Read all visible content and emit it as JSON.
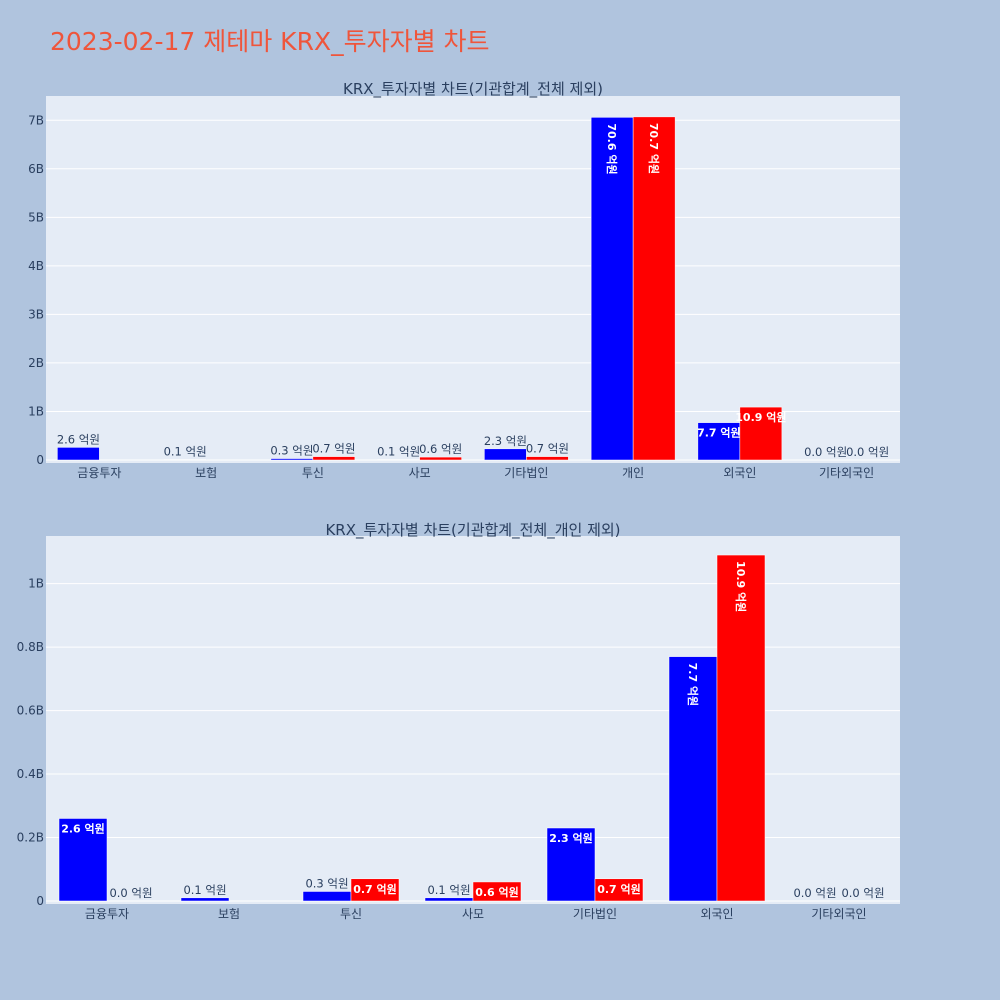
{
  "page_title": "2023-02-17 제테마 KRX_투자자별 차트",
  "colors": {
    "series_a": "#0000ff",
    "series_b": "#ff0000",
    "background": "#b0c4de",
    "plot_bg": "#e5ecf6",
    "title": "#ef553b"
  },
  "chart_data": [
    {
      "type": "bar",
      "title": "KRX_투자자별 차트(기관합계_전체 제외)",
      "categories": [
        "금융투자",
        "보험",
        "투신",
        "사모",
        "기타법인",
        "개인",
        "외국인",
        "기타외국인"
      ],
      "series": [
        {
          "values": [
            260000000,
            10000000,
            30000000,
            10000000,
            230000000,
            7060000000,
            770000000,
            0
          ],
          "labels": [
            "2.6 억원",
            "0.1 억원",
            "0.3 억원",
            "0.1 억원",
            "2.3 억원",
            "70.6 억원",
            "7.7 억원",
            "0.0 억원"
          ]
        },
        {
          "values": [
            0,
            0,
            70000000,
            60000000,
            70000000,
            7070000000,
            1090000000,
            0
          ],
          "labels": [
            "",
            "",
            "0.7 억원",
            "0.6 억원",
            "0.7 억원",
            "70.7 억원",
            "10.9 억원",
            "0.0 억원"
          ]
        }
      ],
      "ylim": [
        0,
        7500000000
      ],
      "yticks": [
        0,
        1000000000,
        2000000000,
        3000000000,
        4000000000,
        5000000000,
        6000000000,
        7000000000
      ],
      "ytick_labels": [
        "0",
        "1B",
        "2B",
        "3B",
        "4B",
        "5B",
        "6B",
        "7B"
      ],
      "grid": true
    },
    {
      "type": "bar",
      "title": "KRX_투자자별 차트(기관합계_전체_개인 제외)",
      "categories": [
        "금융투자",
        "보험",
        "투신",
        "사모",
        "기타법인",
        "외국인",
        "기타외국인"
      ],
      "series": [
        {
          "values": [
            260000000,
            10000000,
            30000000,
            10000000,
            230000000,
            770000000,
            0
          ],
          "labels": [
            "2.6 억원",
            "0.1 억원",
            "0.3 억원",
            "0.1 억원",
            "2.3 억원",
            "7.7 억원",
            "0.0 억원"
          ]
        },
        {
          "values": [
            0,
            0,
            70000000,
            60000000,
            70000000,
            1090000000,
            0
          ],
          "labels": [
            "0.0 억원",
            "",
            "0.7 억원",
            "0.6 억원",
            "0.7 억원",
            "10.9 억원",
            "0.0 억원"
          ]
        }
      ],
      "ylim": [
        0,
        1150000000
      ],
      "yticks": [
        0,
        200000000,
        400000000,
        600000000,
        800000000,
        1000000000
      ],
      "ytick_labels": [
        "0",
        "0.2B",
        "0.4B",
        "0.6B",
        "0.8B",
        "1B"
      ],
      "grid": true
    }
  ]
}
